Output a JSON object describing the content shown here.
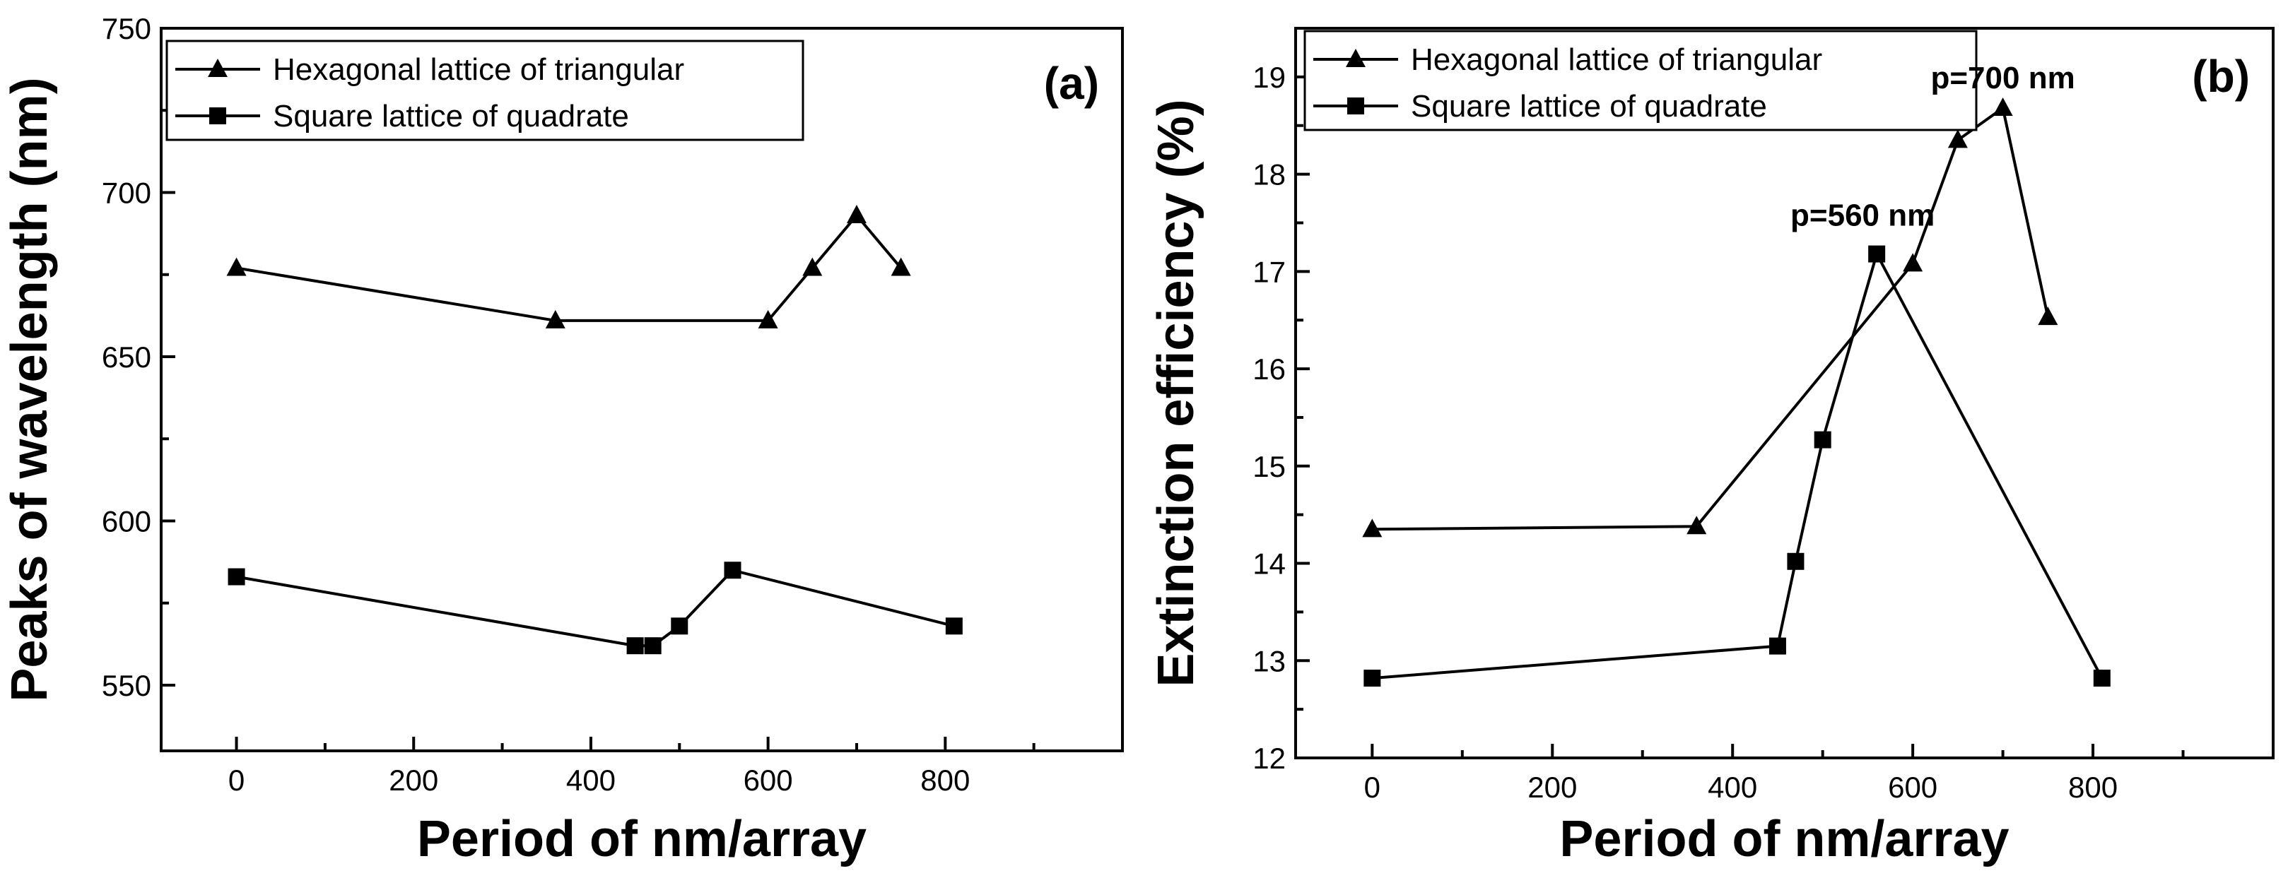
{
  "chart_data": [
    {
      "type": "line",
      "panel_label": "(a)",
      "xlabel": "Period of nm/array",
      "ylabel": "Peaks of wavelength (nm)",
      "xlim": [
        -85,
        1000
      ],
      "ylim": [
        530,
        750
      ],
      "xticks": [
        "0",
        "200",
        "400",
        "600",
        "800"
      ],
      "yticks": [
        "550",
        "600",
        "650",
        "700",
        "750"
      ],
      "legend_position": "top-left",
      "series": [
        {
          "name": "Hexagonal lattice of triangular",
          "marker": "triangle",
          "x": [
            0,
            360,
            600,
            650,
            700,
            750
          ],
          "y": [
            677,
            661,
            661,
            677,
            693,
            677
          ]
        },
        {
          "name": "Square lattice of quadrate",
          "marker": "square",
          "x": [
            0,
            450,
            470,
            500,
            560,
            810
          ],
          "y": [
            583,
            562,
            562,
            568,
            585,
            568
          ]
        }
      ],
      "annotations": []
    },
    {
      "type": "line",
      "panel_label": "(b)",
      "xlabel": "Period of nm/array",
      "ylabel": "Extinction efficiency (%)",
      "xlim": [
        -85,
        1000
      ],
      "ylim": [
        12,
        19.5
      ],
      "xticks": [
        "0",
        "200",
        "400",
        "600",
        "800"
      ],
      "yticks": [
        "12",
        "13",
        "14",
        "15",
        "16",
        "17",
        "18",
        "19"
      ],
      "legend_position": "top-left",
      "series": [
        {
          "name": "Hexagonal lattice of triangular",
          "marker": "triangle",
          "x": [
            0,
            360,
            600,
            650,
            700,
            750
          ],
          "y": [
            14.35,
            14.38,
            17.08,
            18.35,
            18.68,
            16.53
          ]
        },
        {
          "name": "Square lattice of quadrate",
          "marker": "square",
          "x": [
            0,
            450,
            470,
            500,
            560,
            810
          ],
          "y": [
            12.82,
            13.15,
            14.02,
            15.27,
            17.18,
            12.82
          ]
        }
      ],
      "annotations": [
        {
          "text": "p=560 nm",
          "x": 560,
          "y": 17.18
        },
        {
          "text": "p=700 nm",
          "x": 700,
          "y": 18.68
        }
      ]
    }
  ]
}
